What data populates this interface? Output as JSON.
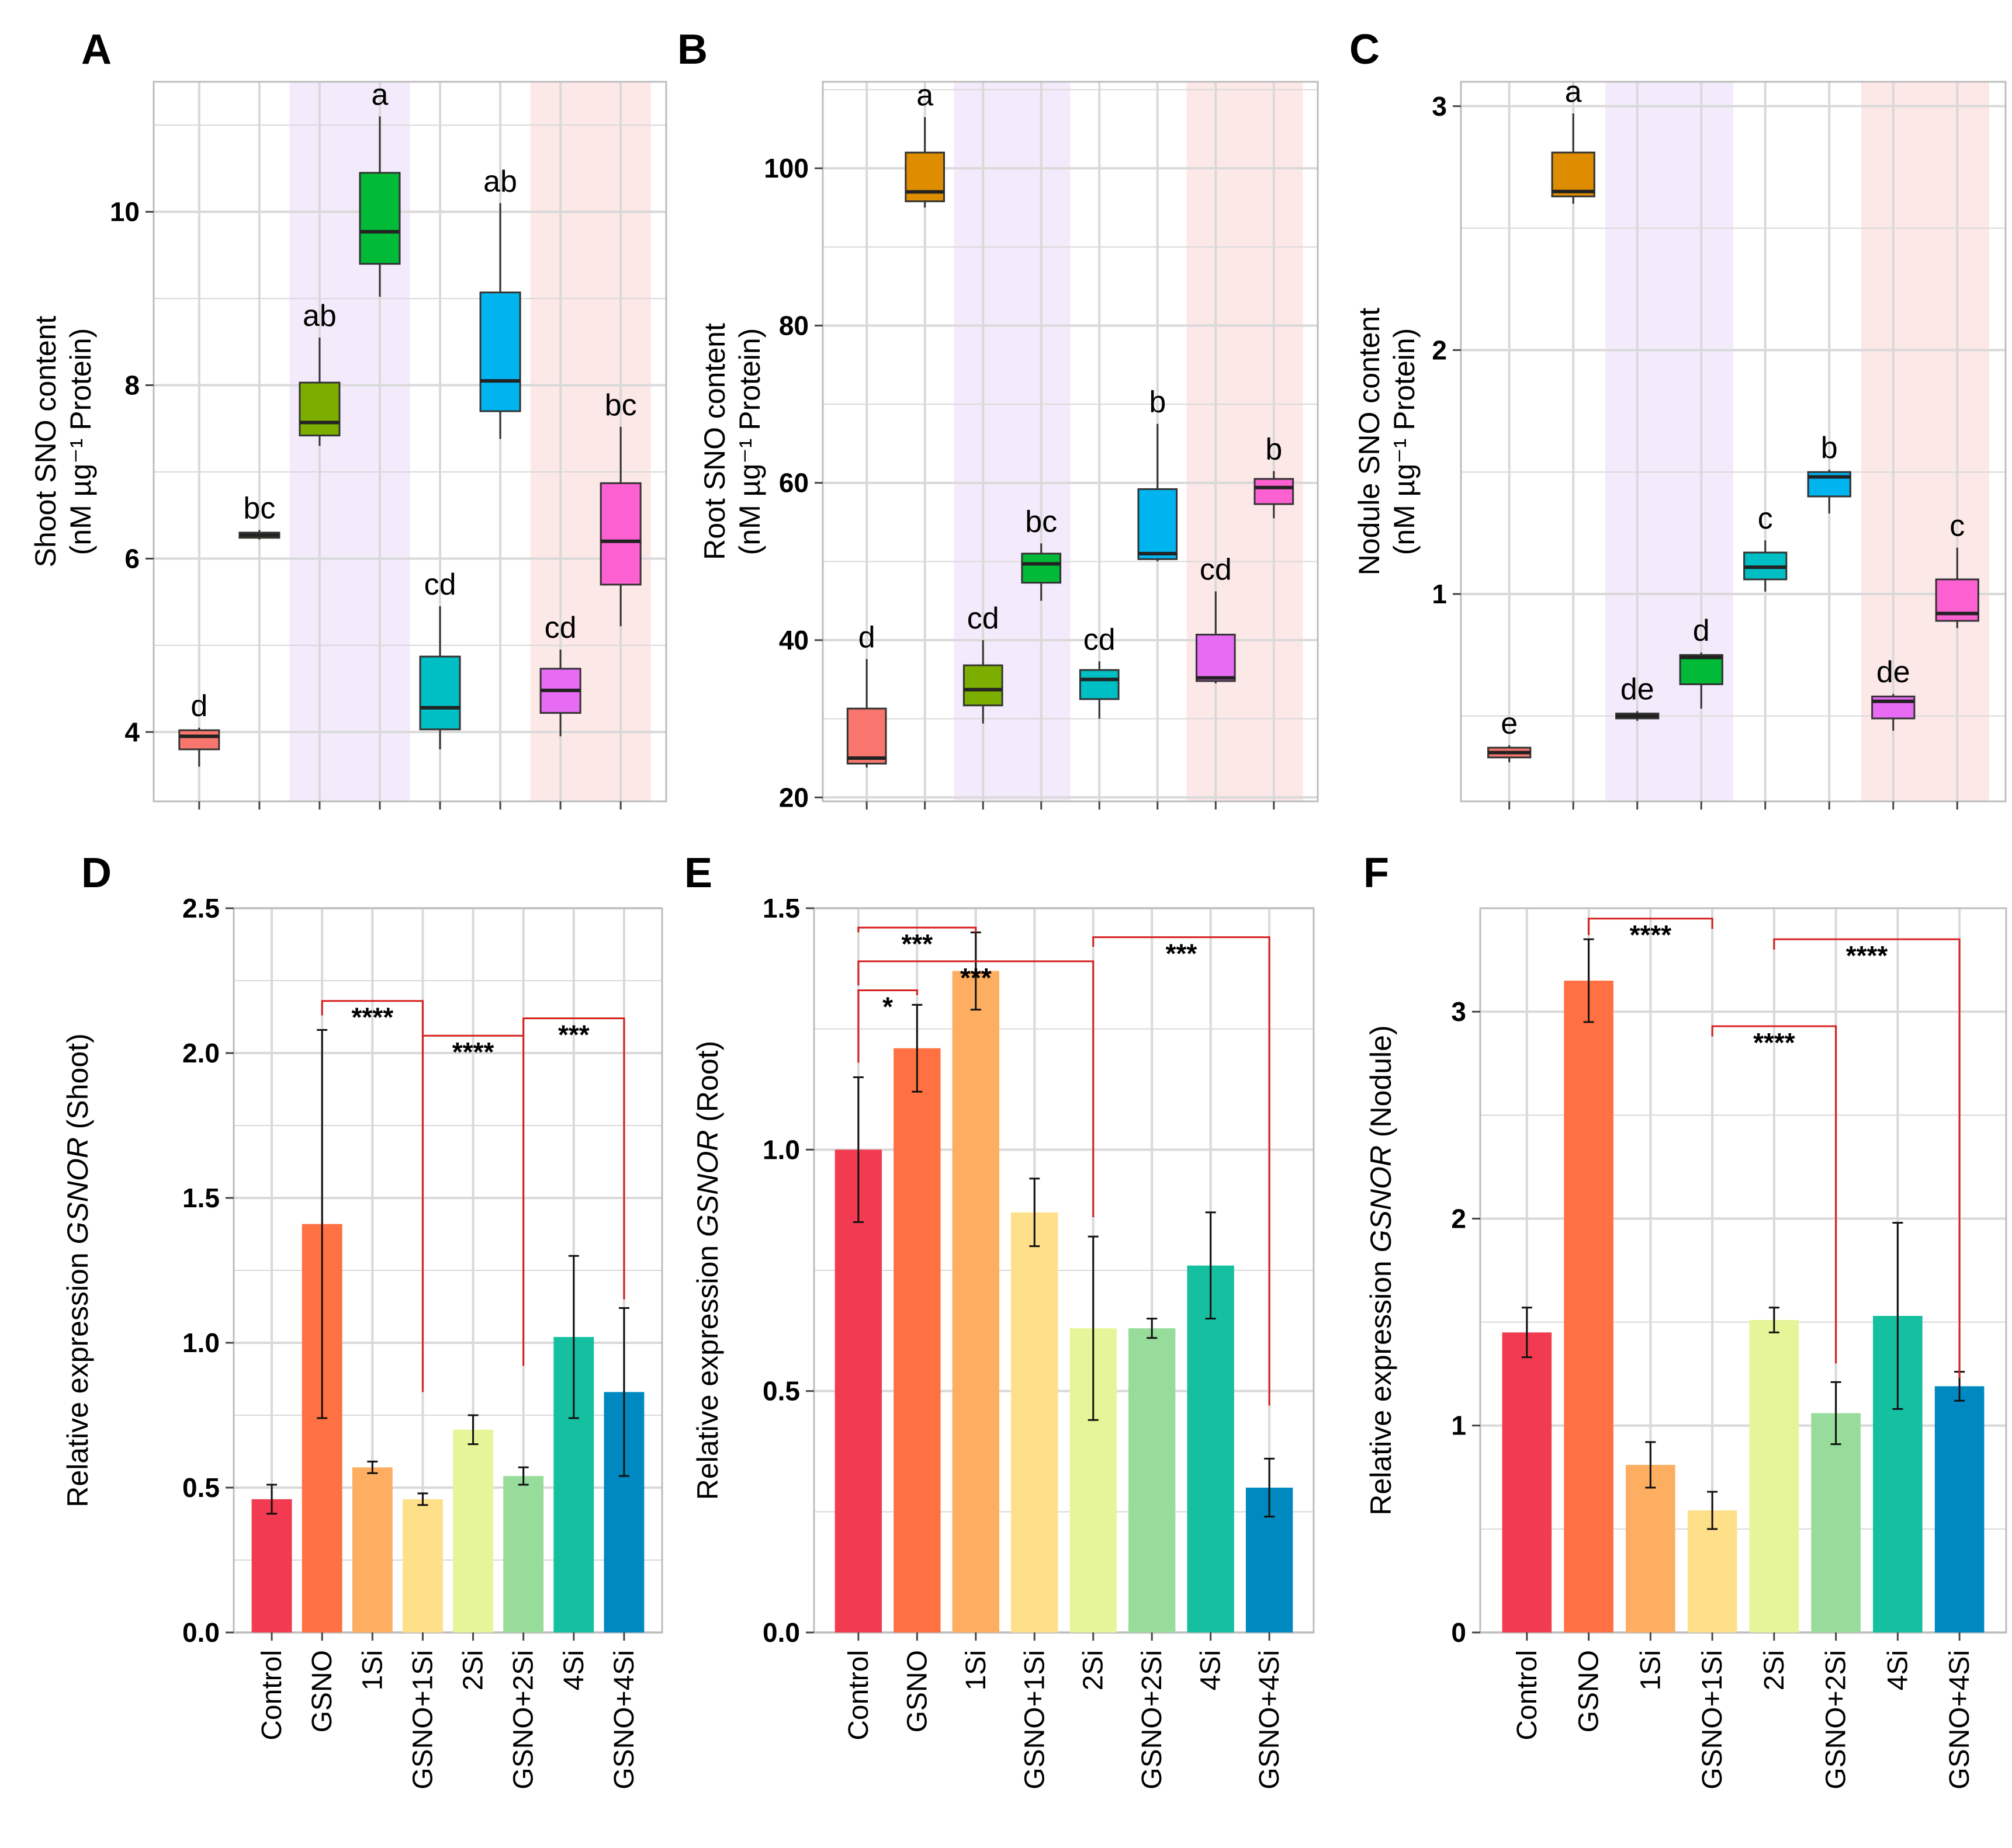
{
  "treatments": [
    "Control",
    "GSNO",
    "1Si",
    "GSNO+1Si",
    "2Si",
    "GSNO+2Si",
    "4Si",
    "GSNO+4Si"
  ],
  "colors": {
    "box": [
      "#f8766d",
      "#de8c00",
      "#7cae00",
      "#00ba38",
      "#00bfc4",
      "#00b4f0",
      "#e76bf3",
      "#fd61d1"
    ],
    "bar": [
      "#f23b50",
      "#ff7043",
      "#fdae61",
      "#fee08b",
      "#e6f598",
      "#98dc9c",
      "#14c0a0",
      "#0088c0"
    ],
    "shade_purple": "#f3eafb",
    "shade_pink": "#fde8e8",
    "grid": "#d9d9d9",
    "bracket": "#d62020"
  },
  "chart_data": [
    {
      "panel": "A",
      "type": "box",
      "ylabel": "Shoot SNO content",
      "ylabel_unit": "(nM µg⁻¹ Protein)",
      "ylim": [
        3.2,
        11.5
      ],
      "ticks": [
        4,
        6,
        8,
        10
      ],
      "tick_labels": [
        "4",
        "6",
        "8",
        "10"
      ],
      "boxes": [
        {
          "min": 3.6,
          "q1": 3.8,
          "median": 3.95,
          "q3": 4.02,
          "max": 4.05
        },
        {
          "min": 6.22,
          "q1": 6.24,
          "median": 6.27,
          "q3": 6.3,
          "max": 6.33
        },
        {
          "min": 7.3,
          "q1": 7.42,
          "median": 7.57,
          "q3": 8.03,
          "max": 8.55
        },
        {
          "min": 9.02,
          "q1": 9.4,
          "median": 9.77,
          "q3": 10.45,
          "max": 11.1
        },
        {
          "min": 3.8,
          "q1": 4.03,
          "median": 4.28,
          "q3": 4.87,
          "max": 5.45
        },
        {
          "min": 7.38,
          "q1": 7.7,
          "median": 8.05,
          "q3": 9.07,
          "max": 10.1
        },
        {
          "min": 3.95,
          "q1": 4.22,
          "median": 4.48,
          "q3": 4.73,
          "max": 4.95
        },
        {
          "min": 5.22,
          "q1": 5.7,
          "median": 6.2,
          "q3": 6.87,
          "max": 7.52
        }
      ],
      "letters": [
        "d",
        "bc",
        "ab",
        "a",
        "cd",
        "ab",
        "cd",
        "bc"
      ]
    },
    {
      "panel": "B",
      "type": "box",
      "ylabel": "Root SNO content",
      "ylabel_unit": "(nM µg⁻¹ Protein)",
      "ylim": [
        19.5,
        111
      ],
      "ticks": [
        20,
        40,
        60,
        80,
        100
      ],
      "tick_labels": [
        "20",
        "40",
        "60",
        "80",
        "100"
      ],
      "boxes": [
        {
          "min": 23.8,
          "q1": 24.3,
          "median": 25.0,
          "q3": 31.3,
          "max": 37.6
        },
        {
          "min": 95.0,
          "q1": 95.8,
          "median": 97.0,
          "q3": 102.0,
          "max": 106.5
        },
        {
          "min": 29.4,
          "q1": 31.7,
          "median": 33.7,
          "q3": 36.8,
          "max": 40.0
        },
        {
          "min": 45.0,
          "q1": 47.3,
          "median": 49.7,
          "q3": 51.0,
          "max": 52.3
        },
        {
          "min": 30.0,
          "q1": 32.5,
          "median": 35.0,
          "q3": 36.2,
          "max": 37.3
        },
        {
          "min": 50.0,
          "q1": 50.3,
          "median": 51.0,
          "q3": 59.2,
          "max": 67.5
        },
        {
          "min": 34.5,
          "q1": 34.8,
          "median": 35.2,
          "q3": 40.7,
          "max": 46.2
        },
        {
          "min": 55.5,
          "q1": 57.3,
          "median": 59.4,
          "q3": 60.5,
          "max": 61.5
        }
      ],
      "letters": [
        "d",
        "a",
        "cd",
        "bc",
        "cd",
        "b",
        "cd",
        "b"
      ]
    },
    {
      "panel": "C",
      "type": "box",
      "ylabel": "Nodule SNO content",
      "ylabel_unit": "(nM µg⁻¹ Protein)",
      "ylim": [
        0.15,
        3.1
      ],
      "ticks": [
        1,
        2,
        3
      ],
      "tick_labels": [
        "1",
        "2",
        "3"
      ],
      "boxes": [
        {
          "min": 0.31,
          "q1": 0.33,
          "median": 0.35,
          "q3": 0.37,
          "max": 0.38
        },
        {
          "min": 2.6,
          "q1": 2.63,
          "median": 2.65,
          "q3": 2.81,
          "max": 2.97
        },
        {
          "min": 0.48,
          "q1": 0.49,
          "median": 0.5,
          "q3": 0.51,
          "max": 0.52
        },
        {
          "min": 0.53,
          "q1": 0.63,
          "median": 0.74,
          "q3": 0.75,
          "max": 0.76
        },
        {
          "min": 1.01,
          "q1": 1.06,
          "median": 1.11,
          "q3": 1.17,
          "max": 1.22
        },
        {
          "min": 1.33,
          "q1": 1.4,
          "median": 1.48,
          "q3": 1.5,
          "max": 1.51
        },
        {
          "min": 0.44,
          "q1": 0.49,
          "median": 0.56,
          "q3": 0.58,
          "max": 0.59
        },
        {
          "min": 0.86,
          "q1": 0.89,
          "median": 0.92,
          "q3": 1.06,
          "max": 1.19
        }
      ],
      "letters": [
        "e",
        "a",
        "de",
        "d",
        "c",
        "b",
        "de",
        "c"
      ]
    },
    {
      "panel": "D",
      "type": "bar",
      "ylabel_pre": "Relative expression ",
      "ylabel_gene": "GSNOR",
      "ylabel_post": " (Shoot)",
      "ylim": [
        0,
        2.5
      ],
      "ticks": [
        0,
        0.5,
        1,
        1.5,
        2,
        2.5
      ],
      "tick_labels": [
        "0.0",
        "0.5",
        "1.0",
        "1.5",
        "2.0",
        "2.5"
      ],
      "values": [
        0.46,
        1.41,
        0.57,
        0.46,
        0.7,
        0.54,
        1.02,
        0.83
      ],
      "errors": [
        0.05,
        0.67,
        0.02,
        0.02,
        0.05,
        0.03,
        0.28,
        0.29
      ],
      "brackets": [
        {
          "from": 1,
          "to": 3,
          "label": "****",
          "top": 2.18,
          "left_end": 2.13,
          "right_end": 0.83
        },
        {
          "from": 3,
          "to": 5,
          "label": "****",
          "top": 2.06,
          "left_end": 2.0,
          "right_end": 0.92
        },
        {
          "from": 5,
          "to": 7,
          "label": "***",
          "top": 2.12,
          "left_end": 2.06,
          "right_end": 1.15
        }
      ]
    },
    {
      "panel": "E",
      "type": "bar",
      "ylabel_pre": "Relative expression ",
      "ylabel_gene": "GSNOR",
      "ylabel_post": " (Root)",
      "ylim": [
        0,
        1.5
      ],
      "ticks": [
        0,
        0.5,
        1,
        1.5
      ],
      "tick_labels": [
        "0.0",
        "0.5",
        "1.0",
        "1.5"
      ],
      "values": [
        1.0,
        1.21,
        1.37,
        0.87,
        0.63,
        0.63,
        0.76,
        0.3
      ],
      "errors": [
        0.15,
        0.09,
        0.08,
        0.07,
        0.19,
        0.02,
        0.11,
        0.06
      ],
      "brackets": [
        {
          "from": 0,
          "to": 2,
          "label": "***",
          "top": 1.46,
          "left_end": 1.45,
          "right_end": 1.45
        },
        {
          "from": 0,
          "to": 1,
          "label": "*",
          "top": 1.33,
          "left_end": 1.18,
          "right_end": 1.32
        },
        {
          "from": 0,
          "to": 4,
          "label": "***",
          "top": 1.39,
          "left_end": 1.34,
          "right_end": 0.86
        },
        {
          "from": 4,
          "to": 7,
          "label": "***",
          "top": 1.44,
          "left_end": 1.42,
          "right_end": 0.47
        }
      ]
    },
    {
      "panel": "F",
      "type": "bar",
      "ylabel_pre": "Relative expression ",
      "ylabel_gene": "GSNOR",
      "ylabel_post": " (Nodule)",
      "ylim": [
        0,
        3.5
      ],
      "ticks": [
        0,
        1,
        2,
        3
      ],
      "tick_labels": [
        "0",
        "1",
        "2",
        "3"
      ],
      "values": [
        1.45,
        3.15,
        0.81,
        0.59,
        1.51,
        1.06,
        1.53,
        1.19
      ],
      "errors": [
        0.12,
        0.2,
        0.11,
        0.09,
        0.06,
        0.15,
        0.45,
        0.07
      ],
      "brackets": [
        {
          "from": 1,
          "to": 3,
          "label": "****",
          "top": 3.45,
          "left_end": 3.37,
          "right_end": 3.4
        },
        {
          "from": 3,
          "to": 5,
          "label": "****",
          "top": 2.93,
          "left_end": 2.88,
          "right_end": 1.3
        },
        {
          "from": 4,
          "to": 7,
          "label": "****",
          "top": 3.35,
          "left_end": 3.3,
          "right_end": 1.23
        }
      ]
    }
  ]
}
